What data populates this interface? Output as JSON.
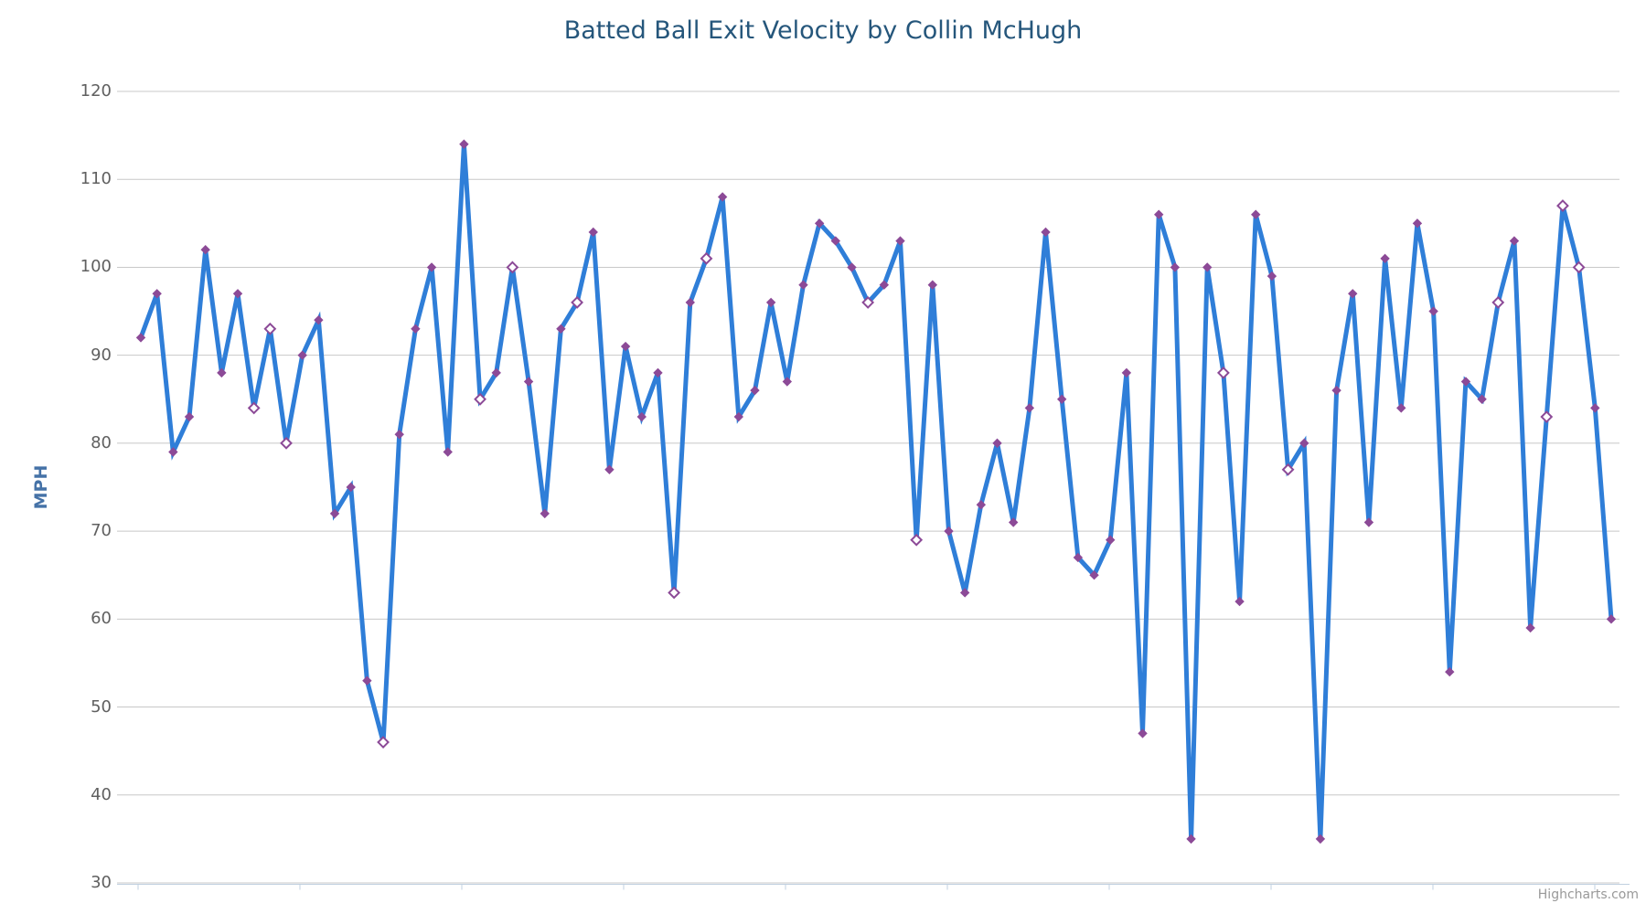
{
  "title": "Batted Ball Exit Velocity by Collin McHugh",
  "y_axis_title": "MPH",
  "credit": "Highcharts.com",
  "chart_data": {
    "type": "line",
    "title": "Batted Ball Exit Velocity by Collin McHugh",
    "xlabel": "",
    "ylabel": "MPH",
    "ylim": [
      30,
      120
    ],
    "y_ticks": [
      120,
      110,
      100,
      90,
      80,
      70,
      60,
      50,
      40,
      30
    ],
    "grid": true,
    "legend": "none",
    "series": [
      {
        "name": "Batted Ball Exit Velocity",
        "values": [
          92,
          97,
          79,
          83,
          102,
          88,
          97,
          84,
          93,
          80,
          90,
          94,
          72,
          75,
          53,
          46,
          81,
          93,
          100,
          79,
          114,
          85,
          88,
          100,
          87,
          72,
          93,
          96,
          104,
          77,
          91,
          83,
          88,
          63,
          96,
          101,
          108,
          83,
          86,
          96,
          87,
          98,
          105,
          103,
          100,
          96,
          98,
          103,
          69,
          98,
          70,
          63,
          73,
          80,
          71,
          84,
          104,
          85,
          67,
          65,
          69,
          88,
          47,
          106,
          100,
          35,
          100,
          88,
          62,
          106,
          99,
          77,
          80,
          35,
          86,
          97,
          71,
          101,
          84,
          105,
          95,
          54,
          87,
          85,
          96,
          103,
          59,
          83,
          107,
          100,
          84,
          60
        ],
        "open_marker_indices": [
          7,
          8,
          9,
          15,
          21,
          23,
          27,
          33,
          35,
          45,
          48,
          67,
          71,
          84,
          87,
          88,
          89
        ]
      }
    ],
    "colors": {
      "line": "#2f7ed8",
      "marker_fill": "#8c4a97",
      "marker_open_fill": "#ffffff",
      "grid": "#c8c8c8",
      "axis_line": "#c0d0e0",
      "title": "#25567b",
      "axis_labels": "#606060",
      "y_axis_title": "#4572a7",
      "credit": "#999999"
    }
  }
}
